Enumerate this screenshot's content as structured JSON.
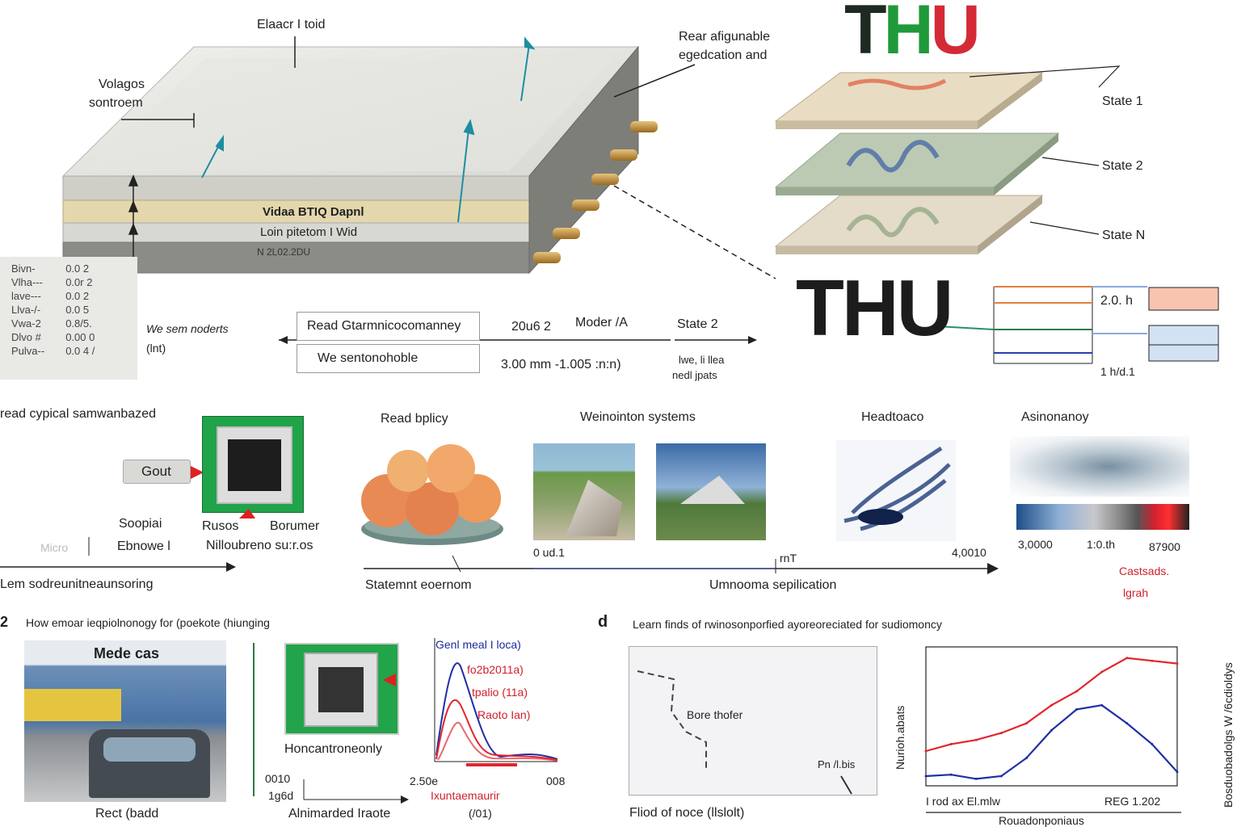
{
  "panel_a": {
    "top_label": "Elaacr I toid",
    "side_label_1": "Volagos",
    "side_label_2": "sontroem",
    "right_label_1": "Rear afigunable",
    "right_label_2": "egedcation and",
    "layer_1": "Vidaa BTIQ Dapnl",
    "layer_2": "Loin pitetom I Wid",
    "layer_3": "N 2L02.2DU",
    "legend": {
      "labels": [
        "Bivn-",
        "Vlha---",
        "lave---",
        "Llva-/-",
        "Vwa-2",
        "Dlvo #",
        "Pulva--"
      ],
      "values": [
        "0.0 2",
        "0.0r 2",
        "0.0 2",
        "0.0 5",
        "0.8/5.",
        "0.00 0",
        "0.0 4 /"
      ]
    },
    "read_mode": "We sem noderts",
    "read_mode_unit": "(lnt)",
    "box_top": "Read Gtarmnicocomanney",
    "box_bottom": "We sentonohoble",
    "val_left": "20u6 2",
    "val_mid": "Moder /A",
    "val_dims": "3.00 mm -1.005 :n:n)",
    "state_arrow": "State 2",
    "state_note_1": "lwe, li llea",
    "state_note_2": "nedl jpats"
  },
  "panel_b": {
    "logo_top": "THU",
    "logo_bottom": "THU",
    "state_1": "State 1",
    "state_2": "State 2",
    "state_n": "State N",
    "chart_val": "2.0. h",
    "chart_axis": "1 h/d.1"
  },
  "panel_c": {
    "left_title": "read cypical samwanbazed",
    "gout": "Gout",
    "sooptai": "Soopiai",
    "ebnowe": "Ebnowe l",
    "rusos": "Rusos",
    "borumer": "Borumer",
    "nillo": "Nilloubreno su:r.os",
    "micro": "Micro",
    "left_axis": "Lem sodreunitneaunsoring",
    "cat_1": "Read bplicy",
    "cat_2": "Weinointon systems",
    "cat_3": "Headtoaco",
    "cat_4": "Asinonanoy",
    "axis_start": "0 ud.1",
    "axis_mid": "rnT",
    "axis_end": "4,0010",
    "axis_label_1": "Statemnt eoernom",
    "axis_label_2": "Umnooma sepilication",
    "scale_1": "3,0000",
    "scale_2": "1:0.th",
    "scale_3": "87900",
    "scale_note_1": "Castsads.",
    "scale_note_2": "lgrah"
  },
  "panel_2": {
    "label": "2",
    "title": "How emoar ieqpiolnonogy for (poekote (hiunging",
    "photo_title": "Mede cas",
    "photo_caption": "Rect (badd",
    "chip_caption": "Honcantroneonly",
    "ax_1": "0010",
    "ax_2": "1g6d",
    "ax_caption": "Alnimarded Iraote",
    "leg_1": "Genl meal I loca)",
    "leg_2": "fo2b2011a)",
    "leg_3": "tpalio (11a)",
    "leg_4": "Raoto Ian)",
    "x_start": "2.50e",
    "x_end": "008",
    "x_label": "Ixuntaemaurir",
    "x_unit": "(/01)"
  },
  "panel_d": {
    "label": "d",
    "title": "Learn finds of rwinosonporfied ayoreoreciated for sudiomoncy",
    "inner_label_1": "Bore thofer",
    "inner_label_2": "Pn /l.bis",
    "caption": "Fliod of noce (llslolt)",
    "y_label": "Nurioh.abats",
    "x_left": "I rod ax El.mlw",
    "x_right": "REG 1.202",
    "x_bottom": "Rouadonponiaus",
    "side_vertical": "Bosduobadolgs W /6cdioldys"
  },
  "colors": {
    "red": "#e0262d",
    "blue": "#1f2fa6",
    "green": "#1f9a3a",
    "teal": "#2a8fa0"
  },
  "chart_data": {
    "type": "line",
    "title": "",
    "xlabel": "I rod ax El.mlw",
    "ylabel": "Nurioh.abats",
    "series": [
      {
        "name": "red",
        "x": [
          0,
          10,
          20,
          30,
          40,
          50,
          60,
          70,
          80,
          90,
          100
        ],
        "values": [
          0.25,
          0.3,
          0.33,
          0.38,
          0.45,
          0.58,
          0.68,
          0.82,
          0.92,
          0.9,
          0.88
        ]
      },
      {
        "name": "blue",
        "x": [
          0,
          10,
          20,
          30,
          40,
          50,
          60,
          70,
          80,
          90,
          100
        ],
        "values": [
          0.07,
          0.08,
          0.05,
          0.07,
          0.2,
          0.4,
          0.55,
          0.58,
          0.45,
          0.3,
          0.1
        ]
      }
    ],
    "ylim": [
      0,
      1
    ]
  }
}
